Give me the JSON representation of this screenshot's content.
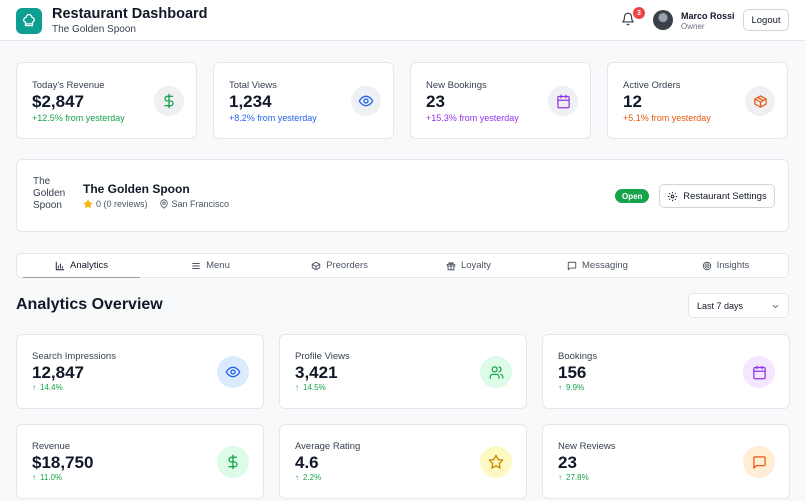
{
  "header": {
    "title": "Restaurant Dashboard",
    "subtitle": "The Golden Spoon",
    "notification_count": "3",
    "user_name": "Marco Rossi",
    "user_role": "Owner",
    "logout_label": "Logout"
  },
  "stats": [
    {
      "label": "Today's Revenue",
      "value": "$2,847",
      "change": "+12.5% from yesterday",
      "color": "#16a34a",
      "icon": "dollar-icon"
    },
    {
      "label": "Total Views",
      "value": "1,234",
      "change": "+8.2% from yesterday",
      "color": "#2563eb",
      "icon": "eye-icon"
    },
    {
      "label": "New Bookings",
      "value": "23",
      "change": "+15.3% from yesterday",
      "color": "#9333ea",
      "icon": "calendar-icon"
    },
    {
      "label": "Active Orders",
      "value": "12",
      "change": "+5.1% from yesterday",
      "color": "#ea580c",
      "icon": "box-icon"
    }
  ],
  "restaurant": {
    "image_alt": "The Golden Spoon",
    "name": "The Golden Spoon",
    "rating": "0 (0 reviews)",
    "location": "San Francisco",
    "status": "Open",
    "settings_label": "Restaurant Settings"
  },
  "tabs": [
    {
      "label": "Analytics",
      "icon": "bar-chart-icon"
    },
    {
      "label": "Menu",
      "icon": "menu-icon"
    },
    {
      "label": "Preorders",
      "icon": "package-icon"
    },
    {
      "label": "Loyalty",
      "icon": "gift-icon"
    },
    {
      "label": "Messaging",
      "icon": "message-icon"
    },
    {
      "label": "Insights",
      "icon": "target-icon"
    }
  ],
  "overview": {
    "title": "Analytics Overview",
    "range": "Last 7 days"
  },
  "metrics": [
    {
      "label": "Search Impressions",
      "value": "12,847",
      "change": "14.4%",
      "icon": "eye-icon",
      "bg": "#dbeafe",
      "fg": "#2563eb"
    },
    {
      "label": "Profile Views",
      "value": "3,421",
      "change": "14.5%",
      "icon": "users-icon",
      "bg": "#dcfce7",
      "fg": "#16a34a"
    },
    {
      "label": "Bookings",
      "value": "156",
      "change": "9.9%",
      "icon": "calendar-icon",
      "bg": "#f3e8ff",
      "fg": "#9333ea"
    },
    {
      "label": "Revenue",
      "value": "$18,750",
      "change": "11.0%",
      "icon": "dollar-icon",
      "bg": "#dcfce7",
      "fg": "#16a34a"
    },
    {
      "label": "Average Rating",
      "value": "4.6",
      "change": "2.2%",
      "icon": "star-icon",
      "bg": "#fef9c3",
      "fg": "#ca8a04"
    },
    {
      "label": "New Reviews",
      "value": "23",
      "change": "27.8%",
      "icon": "message-icon",
      "bg": "#ffedd5",
      "fg": "#ea580c"
    }
  ]
}
